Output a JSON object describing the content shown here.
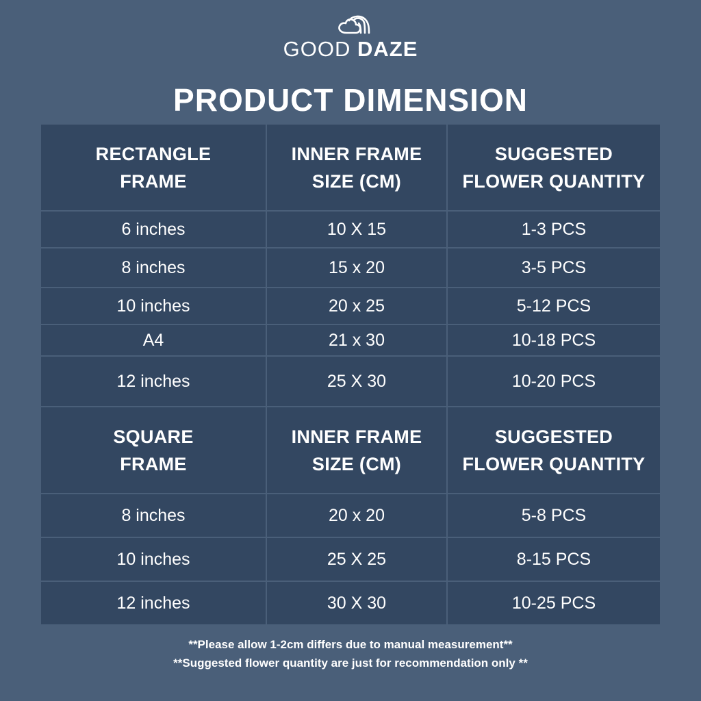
{
  "logo": {
    "icon": "cloud-rainbow-icon",
    "text_regular": "GOOD",
    "text_bold": "DAZE"
  },
  "title": "PRODUCT DIMENSION",
  "rectangle_section": {
    "headers": [
      "RECTANGLE\nFRAME",
      "INNER FRAME\nSIZE (CM)",
      "SUGGESTED\nFLOWER QUANTITY"
    ],
    "rows": [
      [
        "6 inches",
        "10 X 15",
        "1-3 PCS"
      ],
      [
        "8 inches",
        "15 x 20",
        "3-5 PCS"
      ],
      [
        "10 inches",
        "20 x 25",
        "5-12 PCS"
      ],
      [
        "A4",
        "21 x 30",
        "10-18 PCS"
      ],
      [
        "12 inches",
        "25 X 30",
        "10-20 PCS"
      ]
    ]
  },
  "square_section": {
    "headers": [
      "SQUARE\nFRAME",
      "INNER FRAME\nSIZE (CM)",
      "SUGGESTED\nFLOWER QUANTITY"
    ],
    "rows": [
      [
        "8 inches",
        "20 x 20",
        "5-8 PCS"
      ],
      [
        "10 inches",
        "25 X 25",
        "8-15 PCS"
      ],
      [
        "12 inches",
        "30 X 30",
        "10-25 PCS"
      ]
    ]
  },
  "notes": [
    "**Please allow 1-2cm differs due to manual measurement**",
    "**Suggested flower quantity are just for recommendation only **"
  ],
  "colors": {
    "background": "#4a5f79",
    "cell": "#334761",
    "text": "#ffffff"
  }
}
